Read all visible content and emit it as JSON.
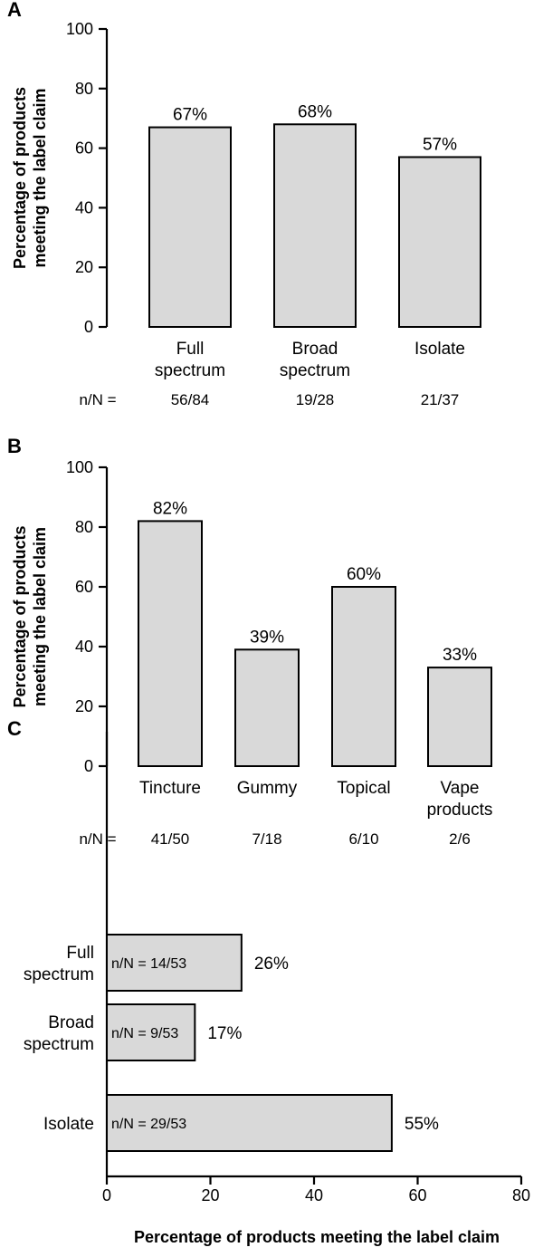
{
  "chart_data": [
    {
      "panel": "A",
      "type": "bar",
      "categories": [
        [
          "Full",
          "spectrum"
        ],
        [
          "Broad",
          "spectrum"
        ],
        [
          "Isolate"
        ]
      ],
      "values": [
        67,
        68,
        57
      ],
      "value_labels": [
        "67%",
        "68%",
        "57%"
      ],
      "counts_label": "n/N =",
      "counts": [
        "56/84",
        "19/28",
        "21/37"
      ],
      "ylabel": [
        "Percentage of products",
        "meeting the label claim"
      ],
      "ylim": [
        0,
        100
      ],
      "yticks": [
        0,
        20,
        40,
        60,
        80,
        100
      ]
    },
    {
      "panel": "B",
      "type": "bar",
      "categories": [
        [
          "Tincture"
        ],
        [
          "Gummy"
        ],
        [
          "Topical"
        ],
        [
          "Vape",
          "products"
        ]
      ],
      "values": [
        82,
        39,
        60,
        33
      ],
      "value_labels": [
        "82%",
        "39%",
        "60%",
        "33%"
      ],
      "counts_label": "n/N =",
      "counts": [
        "41/50",
        "7/18",
        "6/10",
        "2/6"
      ],
      "ylabel": [
        "Percentage of products",
        "meeting the label claim"
      ],
      "ylim": [
        0,
        100
      ],
      "yticks": [
        0,
        20,
        40,
        60,
        80,
        100
      ]
    },
    {
      "panel": "C",
      "type": "bar",
      "orientation": "horizontal",
      "categories": [
        [
          "Full",
          "spectrum"
        ],
        [
          "Broad",
          "spectrum"
        ],
        [
          "Isolate"
        ]
      ],
      "values": [
        26,
        17,
        55
      ],
      "value_labels": [
        "26%",
        "17%",
        "55%"
      ],
      "in_bar_labels": [
        "n/N = 14/53",
        "n/N = 9/53",
        "n/N = 29/53"
      ],
      "xlabel": "Percentage of products meeting the label claim",
      "xlim": [
        0,
        80
      ],
      "xticks": [
        0,
        20,
        40,
        60,
        80
      ]
    }
  ]
}
